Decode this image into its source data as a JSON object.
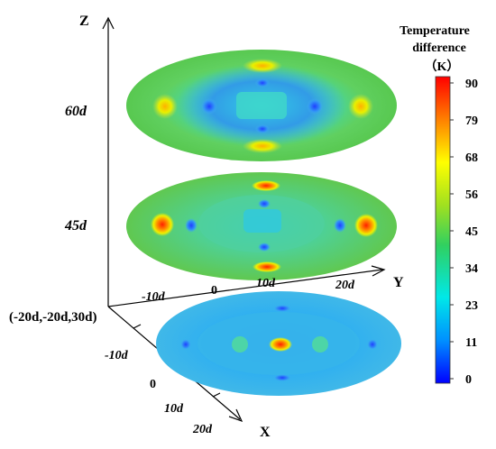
{
  "axes": {
    "z_label": "Z",
    "y_label": "Y",
    "x_label": "X",
    "origin_label": "(-20d,-20d,30d)",
    "z_ticks": [
      "60d",
      "45d"
    ],
    "y_ticks": [
      "-10d",
      "0",
      "10d",
      "20d"
    ],
    "x_ticks": [
      "-10d",
      "0",
      "10d",
      "20d"
    ]
  },
  "colorbar": {
    "title_line1": "Temperature",
    "title_line2": "difference",
    "unit": "（K）",
    "ticks": [
      "90",
      "79",
      "68",
      "56",
      "45",
      "34",
      "23",
      "11",
      "0"
    ],
    "min": 0,
    "max": 90,
    "colors": [
      "#0000ff",
      "#0090ff",
      "#00e8e8",
      "#30d060",
      "#a0e020",
      "#ffff00",
      "#ff8000",
      "#ff0000"
    ]
  },
  "slices": [
    {
      "z_label": "60d",
      "mean": 34
    },
    {
      "z_label": "45d",
      "mean": 40
    },
    {
      "z_label": "30d",
      "mean": 22
    }
  ]
}
